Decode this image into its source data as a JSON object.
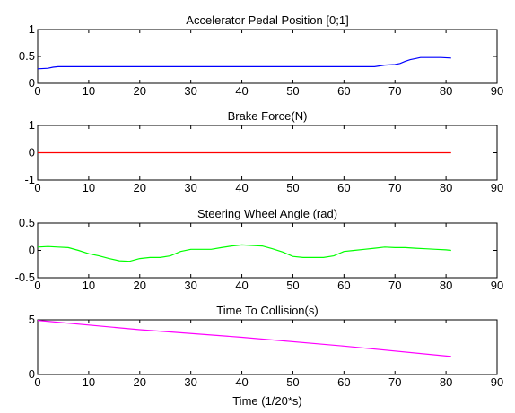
{
  "chart_data": [
    {
      "type": "line",
      "title": "Accelerator Pedal Position [0;1]",
      "xlabel": "",
      "ylabel": "",
      "xlim": [
        0,
        90
      ],
      "ylim": [
        0,
        1
      ],
      "xticks": [
        0,
        10,
        20,
        30,
        40,
        50,
        60,
        70,
        80,
        90
      ],
      "yticks": [
        0,
        0.5,
        1
      ],
      "grid": false,
      "series": [
        {
          "color": "#0000ff",
          "x": [
            0,
            2,
            3,
            4,
            10,
            20,
            30,
            40,
            50,
            60,
            66,
            68,
            70,
            71,
            72,
            73,
            74,
            75,
            77,
            79,
            81
          ],
          "y": [
            0.27,
            0.28,
            0.3,
            0.31,
            0.31,
            0.31,
            0.31,
            0.31,
            0.31,
            0.31,
            0.31,
            0.34,
            0.35,
            0.37,
            0.41,
            0.44,
            0.46,
            0.48,
            0.48,
            0.48,
            0.47
          ]
        }
      ]
    },
    {
      "type": "line",
      "title": "Brake Force(N)",
      "xlabel": "",
      "ylabel": "",
      "xlim": [
        0,
        90
      ],
      "ylim": [
        -1,
        1
      ],
      "xticks": [
        0,
        10,
        20,
        30,
        40,
        50,
        60,
        70,
        80,
        90
      ],
      "yticks": [
        -1,
        0,
        1
      ],
      "grid": false,
      "series": [
        {
          "color": "#ff0000",
          "x": [
            0,
            81
          ],
          "y": [
            0,
            0
          ]
        }
      ]
    },
    {
      "type": "line",
      "title": "Steering Wheel Angle (rad)",
      "xlabel": "",
      "ylabel": "",
      "xlim": [
        0,
        90
      ],
      "ylim": [
        -0.5,
        0.5
      ],
      "xticks": [
        0,
        10,
        20,
        30,
        40,
        50,
        60,
        70,
        80,
        90
      ],
      "yticks": [
        -0.5,
        0,
        0.5
      ],
      "grid": false,
      "series": [
        {
          "color": "#00ff00",
          "x": [
            0,
            2,
            4,
            6,
            8,
            10,
            12,
            14,
            16,
            18,
            20,
            22,
            24,
            26,
            28,
            30,
            32,
            34,
            36,
            38,
            40,
            42,
            44,
            46,
            48,
            50,
            52,
            54,
            56,
            58,
            60,
            62,
            64,
            66,
            68,
            70,
            72,
            74,
            76,
            78,
            80,
            81
          ],
          "y": [
            0.06,
            0.07,
            0.06,
            0.05,
            0.0,
            -0.06,
            -0.1,
            -0.15,
            -0.19,
            -0.2,
            -0.15,
            -0.13,
            -0.13,
            -0.1,
            -0.02,
            0.02,
            0.02,
            0.02,
            0.05,
            0.08,
            0.1,
            0.09,
            0.08,
            0.03,
            -0.03,
            -0.11,
            -0.13,
            -0.13,
            -0.13,
            -0.1,
            -0.02,
            0.0,
            0.02,
            0.04,
            0.06,
            0.05,
            0.05,
            0.04,
            0.03,
            0.02,
            0.01,
            0.0
          ]
        }
      ]
    },
    {
      "type": "line",
      "title": "Time To Collision(s)",
      "xlabel": "Time (1/20*s)",
      "ylabel": "",
      "xlim": [
        0,
        90
      ],
      "ylim": [
        0,
        5
      ],
      "xticks": [
        0,
        10,
        20,
        30,
        40,
        50,
        60,
        70,
        80,
        90
      ],
      "yticks": [
        0,
        5
      ],
      "grid": false,
      "series": [
        {
          "color": "#ff00ff",
          "x": [
            0,
            20,
            40,
            60,
            81
          ],
          "y": [
            4.95,
            4.1,
            3.4,
            2.6,
            1.65
          ]
        }
      ]
    }
  ]
}
